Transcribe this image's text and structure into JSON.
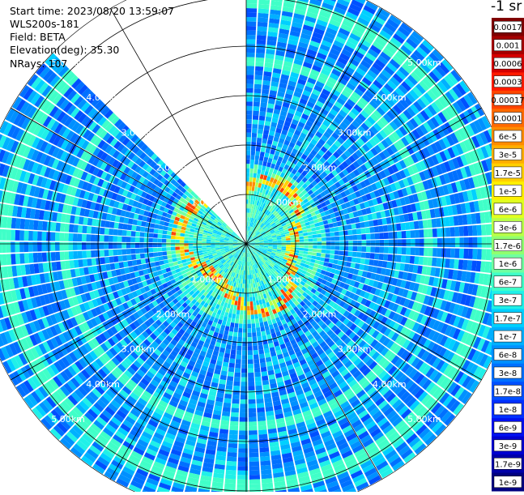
{
  "info": {
    "start_time": "Start time: 2023/08/20 13:59:07",
    "instrument": "WLS200s-181",
    "field": "Field: BETA",
    "elevation": "Elevation(deg): 35.30",
    "nrays": "NRays: 107"
  },
  "colorbar": {
    "title": "-1 sr",
    "labels": [
      "0.0017",
      "0.001",
      "0.0006",
      "0.0003",
      "0.00017",
      "0.0001",
      "6e-5",
      "3e-5",
      "1.7e-5",
      "1e-5",
      "6e-6",
      "3e-6",
      "1.7e-6",
      "1e-6",
      "6e-7",
      "3e-7",
      "1.7e-7",
      "1e-7",
      "6e-8",
      "3e-8",
      "1.7e-8",
      "1e-8",
      "6e-9",
      "3e-9",
      "1.7e-9",
      "1e-9"
    ],
    "colors": [
      "#7f0000",
      "#a50000",
      "#d40000",
      "#ff1a00",
      "#ff4500",
      "#ff6a00",
      "#ff8c00",
      "#ffae00",
      "#ffd000",
      "#fff000",
      "#e0ff20",
      "#b8ff48",
      "#90ff70",
      "#70ffa0",
      "#40ffc8",
      "#20f0e8",
      "#00d0ff",
      "#00b0ff",
      "#0090ff",
      "#0070ff",
      "#0050ff",
      "#0030ff",
      "#0010f0",
      "#0000d0",
      "#0000a8",
      "#000080"
    ]
  },
  "chart_data": {
    "type": "ppi",
    "field": "BETA",
    "elevation_deg": 35.3,
    "nrays": 107,
    "range_rings_km": [
      1,
      2,
      3,
      4,
      5
    ],
    "ring_labels": [
      "1.00km",
      "2.00km",
      "3.00km",
      "4.00km",
      "5.00km"
    ],
    "max_range_km": 5.5,
    "gap_sector_deg": [
      315,
      360
    ],
    "aerosol_ring_km": [
      0.9,
      1.4
    ]
  }
}
